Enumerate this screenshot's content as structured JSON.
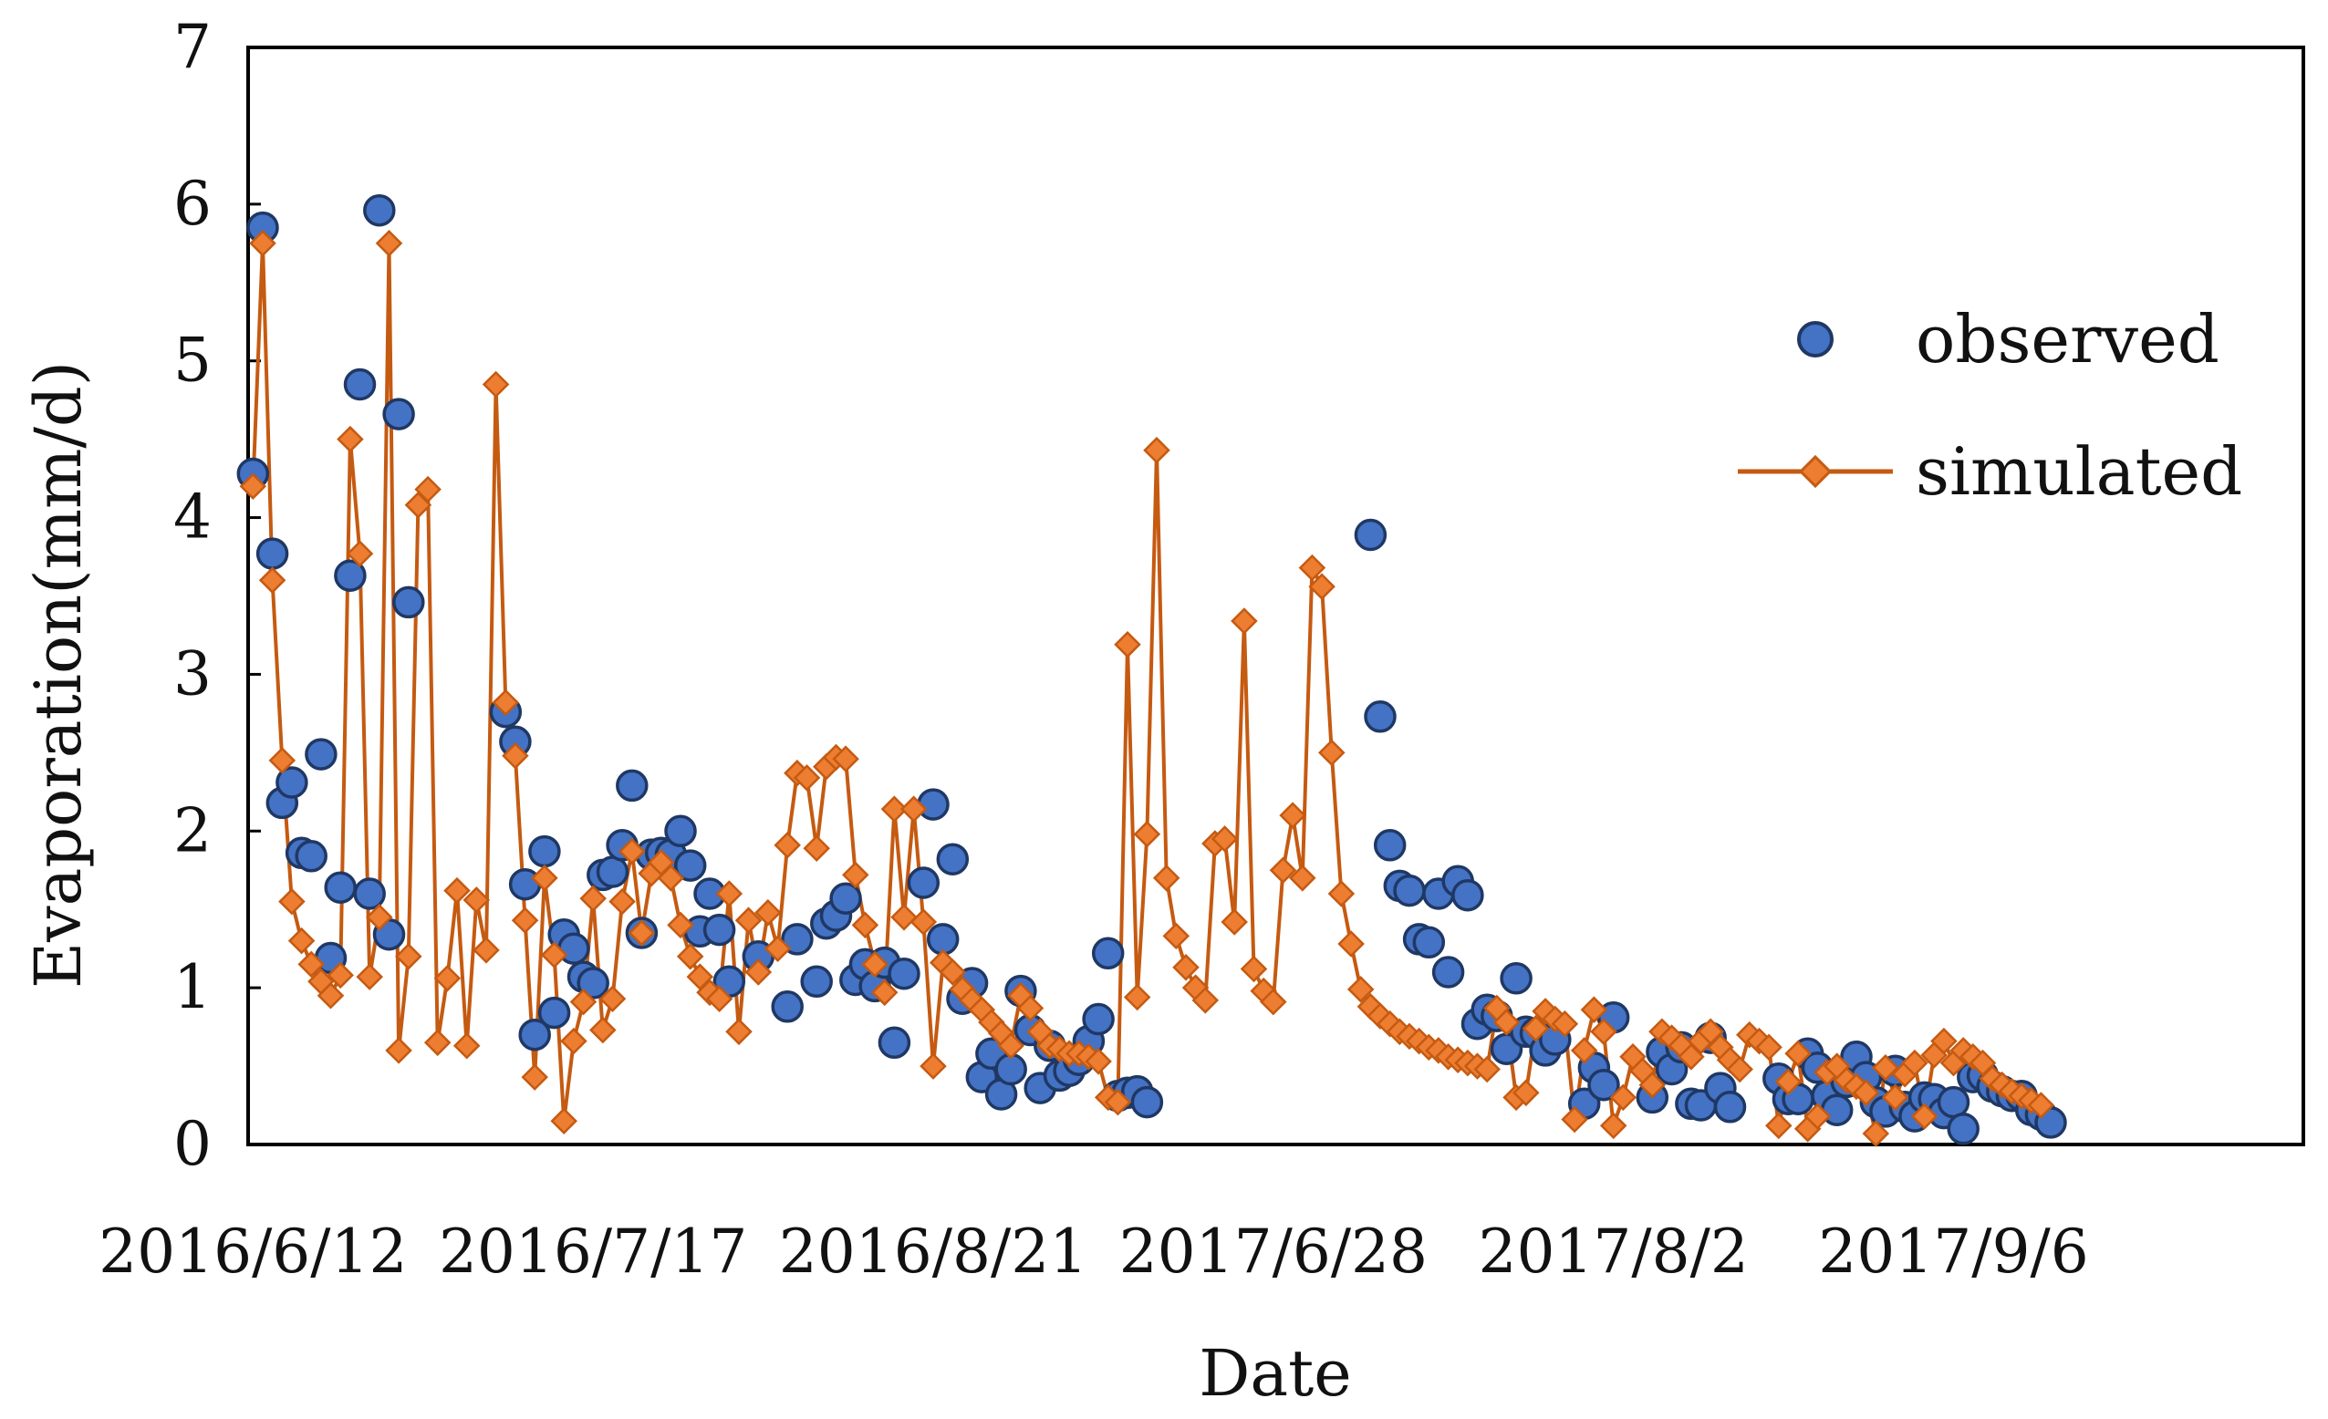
{
  "chart_data": {
    "type": "line",
    "xlabel": "Date",
    "ylabel": "Evaporation(mm/d)",
    "ylim": [
      0,
      7
    ],
    "yticks": [
      "0",
      "1",
      "2",
      "3",
      "4",
      "5",
      "6",
      "7"
    ],
    "xticks": [
      "2016/6/12",
      "2016/7/17",
      "2016/8/21",
      "2017/6/28",
      "2017/8/2",
      "2017/9/6"
    ],
    "x_day_index_start": 1,
    "x_day_index_end": 210,
    "xtick_day_index": [
      1,
      36,
      71,
      106,
      141,
      176
    ],
    "legend": {
      "placement": "top-right"
    },
    "colors": {
      "observed_fill": "#4472C4",
      "observed_edge": "#1F3864",
      "simulated": "#C55A11",
      "simulated_fill": "#ED7D31"
    },
    "series": [
      {
        "name": "observed",
        "style": "markers",
        "points": [
          [
            1,
            4.28
          ],
          [
            2,
            5.85
          ],
          [
            3,
            3.77
          ],
          [
            4,
            2.18
          ],
          [
            5,
            2.31
          ],
          [
            6,
            1.86
          ],
          [
            7,
            1.84
          ],
          [
            8,
            2.49
          ],
          [
            9,
            1.19
          ],
          [
            10,
            1.64
          ],
          [
            11,
            3.63
          ],
          [
            12,
            4.85
          ],
          [
            13,
            1.6
          ],
          [
            14,
            5.96
          ],
          [
            15,
            1.34
          ],
          [
            16,
            4.66
          ],
          [
            17,
            3.46
          ],
          [
            27,
            2.76
          ],
          [
            28,
            2.57
          ],
          [
            29,
            1.66
          ],
          [
            30,
            0.7
          ],
          [
            31,
            1.87
          ],
          [
            32,
            0.84
          ],
          [
            33,
            1.34
          ],
          [
            34,
            1.25
          ],
          [
            35,
            1.07
          ],
          [
            36,
            1.03
          ],
          [
            37,
            1.72
          ],
          [
            38,
            1.74
          ],
          [
            39,
            1.91
          ],
          [
            40,
            2.29
          ],
          [
            41,
            1.35
          ],
          [
            42,
            1.85
          ],
          [
            43,
            1.86
          ],
          [
            44,
            1.85
          ],
          [
            45,
            2.0
          ],
          [
            46,
            1.78
          ],
          [
            47,
            1.36
          ],
          [
            48,
            1.6
          ],
          [
            49,
            1.37
          ],
          [
            50,
            1.04
          ],
          [
            53,
            1.2
          ],
          [
            56,
            0.88
          ],
          [
            57,
            1.31
          ],
          [
            59,
            1.04
          ],
          [
            60,
            1.41
          ],
          [
            61,
            1.46
          ],
          [
            62,
            1.57
          ],
          [
            63,
            1.05
          ],
          [
            64,
            1.15
          ],
          [
            65,
            1.01
          ],
          [
            66,
            1.16
          ],
          [
            67,
            0.65
          ],
          [
            68,
            1.09
          ],
          [
            70,
            1.67
          ],
          [
            71,
            2.17
          ],
          [
            72,
            1.31
          ],
          [
            73,
            1.82
          ],
          [
            74,
            0.93
          ],
          [
            75,
            1.03
          ],
          [
            76,
            0.43
          ],
          [
            77,
            0.58
          ],
          [
            78,
            0.32
          ],
          [
            79,
            0.48
          ],
          [
            80,
            0.98
          ],
          [
            81,
            0.73
          ],
          [
            82,
            0.36
          ],
          [
            83,
            0.63
          ],
          [
            84,
            0.44
          ],
          [
            85,
            0.47
          ],
          [
            86,
            0.54
          ],
          [
            87,
            0.66
          ],
          [
            88,
            0.8
          ],
          [
            89,
            1.22
          ],
          [
            90,
            0.31
          ],
          [
            91,
            0.33
          ],
          [
            92,
            0.34
          ],
          [
            93,
            0.27
          ],
          [
            116,
            3.89
          ],
          [
            117,
            2.73
          ],
          [
            118,
            1.91
          ],
          [
            119,
            1.65
          ],
          [
            120,
            1.62
          ],
          [
            121,
            1.31
          ],
          [
            122,
            1.29
          ],
          [
            123,
            1.6
          ],
          [
            124,
            1.1
          ],
          [
            125,
            1.68
          ],
          [
            126,
            1.59
          ],
          [
            127,
            0.77
          ],
          [
            128,
            0.86
          ],
          [
            129,
            0.82
          ],
          [
            130,
            0.61
          ],
          [
            131,
            1.06
          ],
          [
            132,
            0.72
          ],
          [
            133,
            0.71
          ],
          [
            134,
            0.6
          ],
          [
            135,
            0.67
          ],
          [
            138,
            0.26
          ],
          [
            139,
            0.49
          ],
          [
            140,
            0.38
          ],
          [
            141,
            0.81
          ],
          [
            145,
            0.3
          ],
          [
            146,
            0.59
          ],
          [
            147,
            0.48
          ],
          [
            148,
            0.62
          ],
          [
            149,
            0.26
          ],
          [
            150,
            0.25
          ],
          [
            151,
            0.68
          ],
          [
            152,
            0.36
          ],
          [
            153,
            0.24
          ],
          [
            158,
            0.42
          ],
          [
            159,
            0.29
          ],
          [
            160,
            0.29
          ],
          [
            161,
            0.58
          ],
          [
            162,
            0.49
          ],
          [
            163,
            0.31
          ],
          [
            164,
            0.22
          ],
          [
            165,
            0.4
          ],
          [
            166,
            0.56
          ],
          [
            167,
            0.43
          ],
          [
            168,
            0.27
          ],
          [
            169,
            0.21
          ],
          [
            170,
            0.47
          ],
          [
            171,
            0.24
          ],
          [
            172,
            0.18
          ],
          [
            173,
            0.3
          ],
          [
            174,
            0.29
          ],
          [
            175,
            0.2
          ],
          [
            176,
            0.27
          ],
          [
            177,
            0.1
          ],
          [
            178,
            0.43
          ],
          [
            179,
            0.44
          ],
          [
            180,
            0.37
          ],
          [
            181,
            0.34
          ],
          [
            182,
            0.31
          ],
          [
            183,
            0.31
          ],
          [
            184,
            0.22
          ],
          [
            185,
            0.19
          ],
          [
            186,
            0.14
          ]
        ]
      },
      {
        "name": "simulated",
        "style": "line-markers",
        "points": [
          [
            1,
            4.2
          ],
          [
            2,
            5.75
          ],
          [
            3,
            3.6
          ],
          [
            4,
            2.45
          ],
          [
            5,
            1.55
          ],
          [
            6,
            1.3
          ],
          [
            7,
            1.15
          ],
          [
            8,
            1.04
          ],
          [
            9,
            0.95
          ],
          [
            10,
            1.08
          ],
          [
            11,
            4.5
          ],
          [
            12,
            3.77
          ],
          [
            13,
            1.07
          ],
          [
            14,
            1.45
          ],
          [
            15,
            5.75
          ],
          [
            16,
            0.6
          ],
          [
            17,
            1.2
          ],
          [
            18,
            4.08
          ],
          [
            19,
            4.18
          ],
          [
            20,
            0.65
          ],
          [
            21,
            1.06
          ],
          [
            22,
            1.62
          ],
          [
            23,
            0.63
          ],
          [
            24,
            1.56
          ],
          [
            25,
            1.24
          ],
          [
            26,
            4.85
          ],
          [
            27,
            2.82
          ],
          [
            28,
            2.48
          ],
          [
            29,
            1.43
          ],
          [
            30,
            0.43
          ],
          [
            31,
            1.7
          ],
          [
            32,
            1.21
          ],
          [
            33,
            0.15
          ],
          [
            34,
            0.66
          ],
          [
            35,
            0.91
          ],
          [
            36,
            1.57
          ],
          [
            37,
            0.73
          ],
          [
            38,
            0.93
          ],
          [
            39,
            1.55
          ],
          [
            40,
            1.87
          ],
          [
            41,
            1.35
          ],
          [
            42,
            1.73
          ],
          [
            43,
            1.8
          ],
          [
            44,
            1.7
          ],
          [
            45,
            1.4
          ],
          [
            46,
            1.2
          ],
          [
            47,
            1.07
          ],
          [
            48,
            0.97
          ],
          [
            49,
            0.93
          ],
          [
            50,
            1.6
          ],
          [
            51,
            0.72
          ],
          [
            52,
            1.43
          ],
          [
            53,
            1.1
          ],
          [
            54,
            1.48
          ],
          [
            55,
            1.25
          ],
          [
            56,
            1.91
          ],
          [
            57,
            2.37
          ],
          [
            58,
            2.34
          ],
          [
            59,
            1.89
          ],
          [
            60,
            2.41
          ],
          [
            61,
            2.47
          ],
          [
            62,
            2.46
          ],
          [
            63,
            1.72
          ],
          [
            64,
            1.4
          ],
          [
            65,
            1.15
          ],
          [
            66,
            0.97
          ],
          [
            67,
            2.14
          ],
          [
            68,
            1.45
          ],
          [
            69,
            2.14
          ],
          [
            70,
            1.42
          ],
          [
            71,
            0.5
          ],
          [
            72,
            1.16
          ],
          [
            73,
            1.1
          ],
          [
            74,
            0.99
          ],
          [
            75,
            0.92
          ],
          [
            76,
            0.86
          ],
          [
            77,
            0.78
          ],
          [
            78,
            0.71
          ],
          [
            79,
            0.63
          ],
          [
            80,
            0.95
          ],
          [
            81,
            0.87
          ],
          [
            82,
            0.72
          ],
          [
            83,
            0.63
          ],
          [
            84,
            0.61
          ],
          [
            85,
            0.58
          ],
          [
            86,
            0.58
          ],
          [
            87,
            0.56
          ],
          [
            88,
            0.53
          ],
          [
            89,
            0.3
          ],
          [
            90,
            0.27
          ],
          [
            91,
            3.19
          ],
          [
            92,
            0.94
          ],
          [
            93,
            1.98
          ],
          [
            94,
            4.43
          ],
          [
            95,
            1.7
          ],
          [
            96,
            1.33
          ],
          [
            97,
            1.13
          ],
          [
            98,
            1.0
          ],
          [
            99,
            0.92
          ],
          [
            100,
            1.92
          ],
          [
            101,
            1.95
          ],
          [
            102,
            1.42
          ],
          [
            103,
            3.34
          ],
          [
            104,
            1.12
          ],
          [
            105,
            0.98
          ],
          [
            106,
            0.91
          ],
          [
            107,
            1.75
          ],
          [
            108,
            2.1
          ],
          [
            109,
            1.7
          ],
          [
            110,
            3.68
          ],
          [
            111,
            3.56
          ],
          [
            112,
            2.5
          ],
          [
            113,
            1.6
          ],
          [
            114,
            1.28
          ],
          [
            115,
            0.99
          ],
          [
            116,
            0.88
          ],
          [
            117,
            0.82
          ],
          [
            118,
            0.77
          ],
          [
            119,
            0.72
          ],
          [
            120,
            0.69
          ],
          [
            121,
            0.66
          ],
          [
            122,
            0.62
          ],
          [
            123,
            0.6
          ],
          [
            124,
            0.56
          ],
          [
            125,
            0.54
          ],
          [
            126,
            0.52
          ],
          [
            127,
            0.5
          ],
          [
            128,
            0.48
          ],
          [
            129,
            0.87
          ],
          [
            130,
            0.78
          ],
          [
            131,
            0.3
          ],
          [
            132,
            0.33
          ],
          [
            133,
            0.74
          ],
          [
            134,
            0.85
          ],
          [
            135,
            0.8
          ],
          [
            136,
            0.77
          ],
          [
            137,
            0.16
          ],
          [
            138,
            0.6
          ],
          [
            139,
            0.86
          ],
          [
            140,
            0.72
          ],
          [
            141,
            0.12
          ],
          [
            142,
            0.3
          ],
          [
            143,
            0.56
          ],
          [
            144,
            0.47
          ],
          [
            145,
            0.38
          ],
          [
            146,
            0.72
          ],
          [
            147,
            0.68
          ],
          [
            148,
            0.63
          ],
          [
            149,
            0.56
          ],
          [
            150,
            0.66
          ],
          [
            151,
            0.72
          ],
          [
            152,
            0.62
          ],
          [
            153,
            0.54
          ],
          [
            154,
            0.48
          ],
          [
            155,
            0.7
          ],
          [
            156,
            0.66
          ],
          [
            157,
            0.62
          ],
          [
            158,
            0.12
          ],
          [
            159,
            0.4
          ],
          [
            160,
            0.58
          ],
          [
            161,
            0.1
          ],
          [
            162,
            0.18
          ],
          [
            163,
            0.46
          ],
          [
            164,
            0.5
          ],
          [
            165,
            0.41
          ],
          [
            166,
            0.37
          ],
          [
            167,
            0.33
          ],
          [
            168,
            0.07
          ],
          [
            169,
            0.49
          ],
          [
            170,
            0.3
          ],
          [
            171,
            0.45
          ],
          [
            172,
            0.52
          ],
          [
            173,
            0.18
          ],
          [
            174,
            0.57
          ],
          [
            175,
            0.66
          ],
          [
            176,
            0.52
          ],
          [
            177,
            0.6
          ],
          [
            178,
            0.56
          ],
          [
            179,
            0.52
          ],
          [
            180,
            0.42
          ],
          [
            181,
            0.38
          ],
          [
            182,
            0.34
          ],
          [
            183,
            0.31
          ],
          [
            184,
            0.28
          ],
          [
            185,
            0.25
          ]
        ]
      }
    ]
  }
}
